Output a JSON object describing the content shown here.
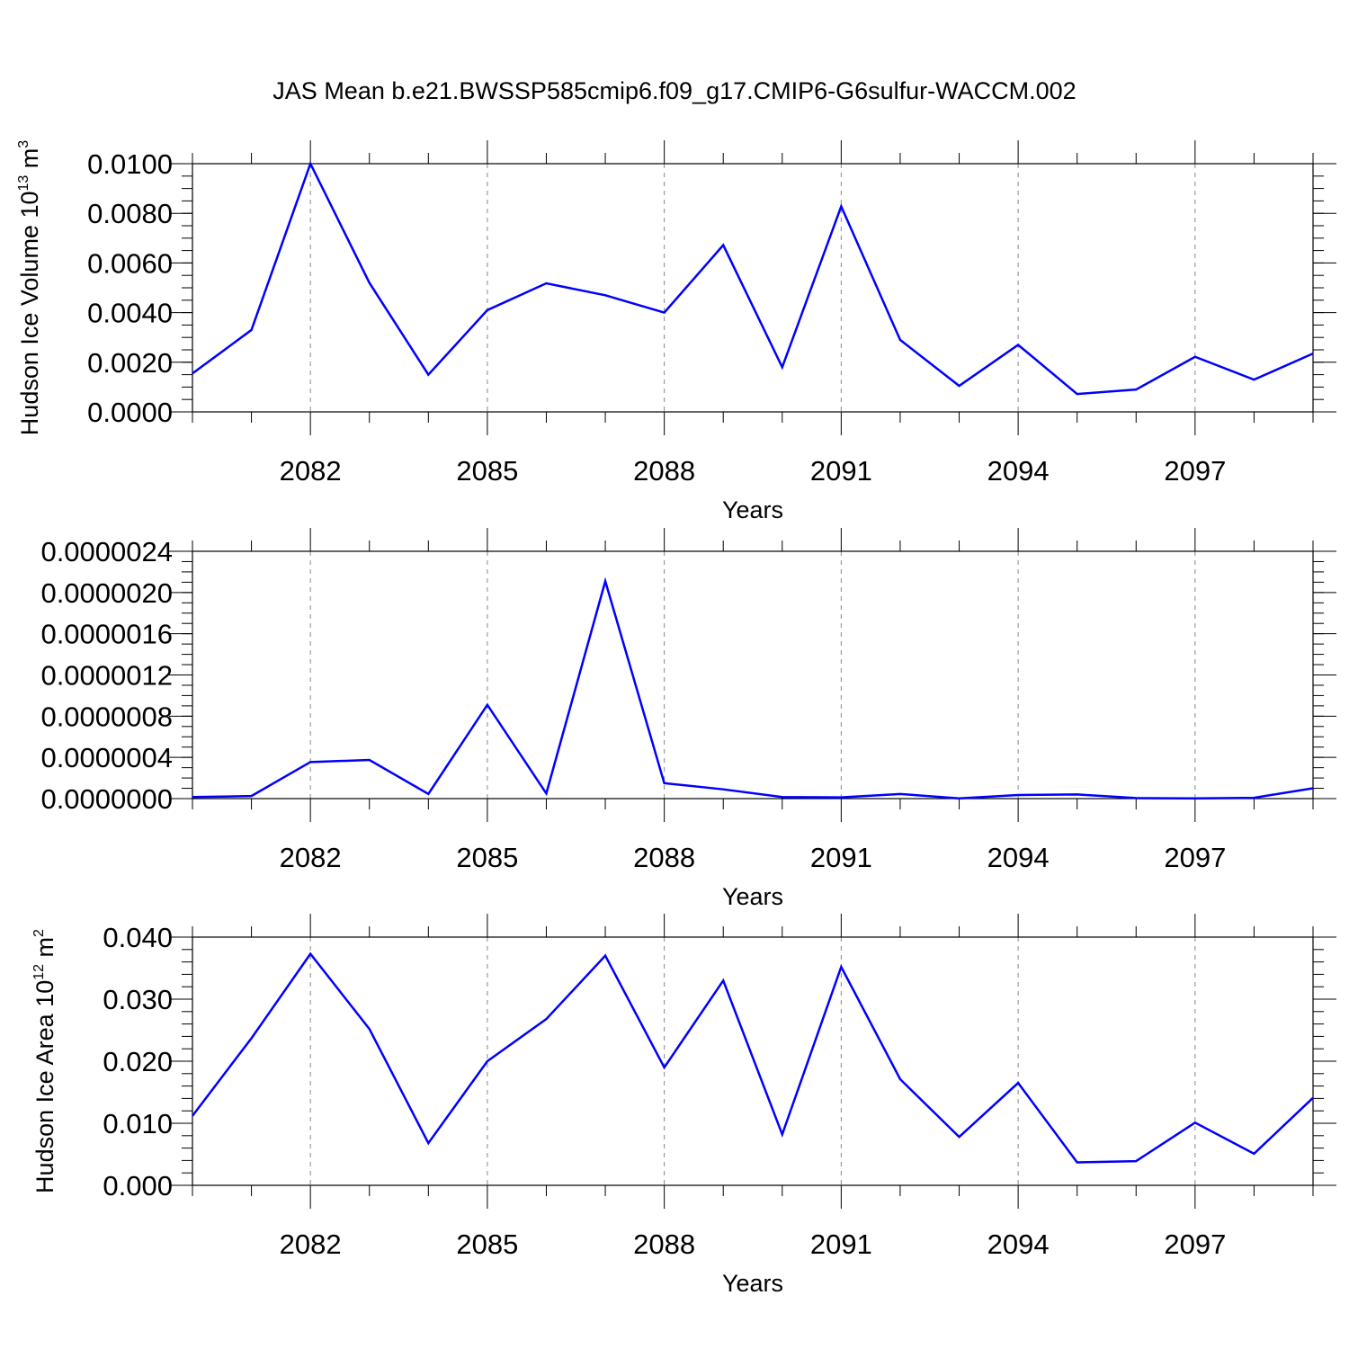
{
  "figure": {
    "title": "JAS Mean b.e21.BWSSP585cmip6.f09_g17.CMIP6-G6sulfur-WACCM.002"
  },
  "style": {
    "line_color": "#0000ff",
    "axis_color": "#000000",
    "grid_color": "#888888"
  },
  "chart_data": [
    {
      "type": "line",
      "title": "",
      "xlabel": "Years",
      "ylabel": {
        "text": "Hudson Ice Volume 10",
        "sup": "13",
        "unit": " m",
        "unit_sup": "3"
      },
      "xlim": [
        2080,
        2099
      ],
      "ylim": [
        0.0,
        0.01
      ],
      "x_ticks": [
        2082,
        2085,
        2088,
        2091,
        2094,
        2097
      ],
      "x_tick_labels": [
        "2082",
        "2085",
        "2088",
        "2091",
        "2094",
        "2097"
      ],
      "y_ticks": [
        0.0,
        0.002,
        0.004,
        0.006,
        0.008,
        0.01
      ],
      "y_tick_labels": [
        "0.0000",
        "0.0020",
        "0.0040",
        "0.0060",
        "0.0080",
        "0.0100"
      ],
      "y_minor_step": 0.0005,
      "grid": "x-major dashed",
      "x": [
        2080,
        2081,
        2082,
        2083,
        2084,
        2085,
        2086,
        2087,
        2088,
        2089,
        2090,
        2091,
        2092,
        2093,
        2094,
        2095,
        2096,
        2097,
        2098,
        2099
      ],
      "series": [
        {
          "values": [
            0.00155,
            0.0033,
            0.01,
            0.0052,
            0.0015,
            0.0041,
            0.00518,
            0.0047,
            0.004,
            0.00672,
            0.0018,
            0.00828,
            0.0029,
            0.00105,
            0.0027,
            0.00072,
            0.0009,
            0.00222,
            0.0013,
            0.00235
          ]
        }
      ]
    },
    {
      "type": "line",
      "title": "",
      "xlabel": "Years",
      "ylabel": null,
      "xlim": [
        2080,
        2099
      ],
      "ylim": [
        0.0,
        2.4e-06
      ],
      "x_ticks": [
        2082,
        2085,
        2088,
        2091,
        2094,
        2097
      ],
      "x_tick_labels": [
        "2082",
        "2085",
        "2088",
        "2091",
        "2094",
        "2097"
      ],
      "y_ticks": [
        0.0,
        4e-07,
        8e-07,
        1.2e-06,
        1.6e-06,
        2e-06,
        2.4e-06
      ],
      "y_tick_labels": [
        "0.0000000",
        "0.0000004",
        "0.0000008",
        "0.0000012",
        "0.0000016",
        "0.0000020",
        "0.0000024"
      ],
      "y_minor_step": 1e-07,
      "grid": "x-major dashed",
      "x": [
        2080,
        2081,
        2082,
        2083,
        2084,
        2085,
        2086,
        2087,
        2088,
        2089,
        2090,
        2091,
        2092,
        2093,
        2094,
        2095,
        2096,
        2097,
        2098,
        2099
      ],
      "series": [
        {
          "values": [
            1.5e-08,
            2.5e-08,
            3.55e-07,
            3.75e-07,
            4.5e-08,
            9.1e-07,
            5e-08,
            2.11e-06,
            1.5e-07,
            9e-08,
            1.5e-08,
            1.2e-08,
            4.5e-08,
            2e-09,
            3.5e-08,
            4e-08,
            5e-09,
            2e-09,
            8e-09,
            1e-07
          ]
        }
      ]
    },
    {
      "type": "line",
      "title": "",
      "xlabel": "Years",
      "ylabel": {
        "text": "Hudson Ice Area 10",
        "sup": "12",
        "unit": " m",
        "unit_sup": "2"
      },
      "xlim": [
        2080,
        2099
      ],
      "ylim": [
        0.0,
        0.04
      ],
      "x_ticks": [
        2082,
        2085,
        2088,
        2091,
        2094,
        2097
      ],
      "x_tick_labels": [
        "2082",
        "2085",
        "2088",
        "2091",
        "2094",
        "2097"
      ],
      "y_ticks": [
        0.0,
        0.01,
        0.02,
        0.03,
        0.04
      ],
      "y_tick_labels": [
        "0.000",
        "0.010",
        "0.020",
        "0.030",
        "0.040"
      ],
      "y_minor_step": 0.002,
      "grid": "x-major dashed",
      "x": [
        2080,
        2081,
        2082,
        2083,
        2084,
        2085,
        2086,
        2087,
        2088,
        2089,
        2090,
        2091,
        2092,
        2093,
        2094,
        2095,
        2096,
        2097,
        2098,
        2099
      ],
      "series": [
        {
          "values": [
            0.0112,
            0.0237,
            0.0373,
            0.0252,
            0.0068,
            0.02,
            0.0268,
            0.037,
            0.019,
            0.033,
            0.0082,
            0.0352,
            0.0171,
            0.0078,
            0.0165,
            0.0037,
            0.0039,
            0.0101,
            0.0051,
            0.0141
          ]
        }
      ]
    }
  ]
}
